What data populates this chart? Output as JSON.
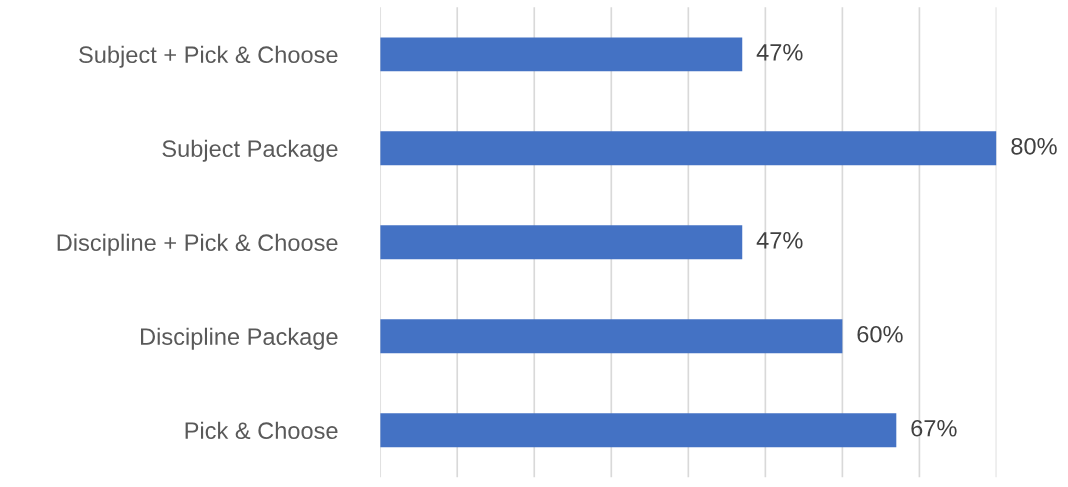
{
  "chart_data": {
    "type": "bar",
    "orientation": "horizontal",
    "categories": [
      "Subject + Pick & Choose",
      "Subject Package",
      "Discipline + Pick & Choose",
      "Discipline Package",
      "Pick & Choose"
    ],
    "values": [
      47,
      80,
      47,
      60,
      67
    ],
    "value_labels": [
      "47%",
      "80%",
      "47%",
      "60%",
      "67%"
    ],
    "color": "#4472c4",
    "xlim": [
      0,
      80
    ],
    "xticks": [
      {
        "value": 0,
        "label": null
      },
      {
        "value": 10,
        "label": null
      },
      {
        "value": 20,
        "label": null
      },
      {
        "value": 30,
        "label": null
      },
      {
        "value": 40,
        "label": null
      },
      {
        "value": 50,
        "label": null
      },
      {
        "value": 60,
        "label": null
      },
      {
        "value": 70,
        "label": null
      },
      {
        "value": 80,
        "label": null
      }
    ],
    "grid": "x"
  }
}
